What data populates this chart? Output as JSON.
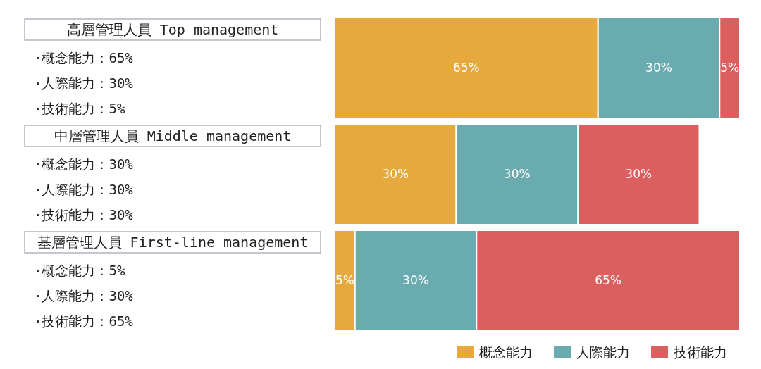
{
  "chart_data": {
    "type": "bar",
    "orientation": "horizontal",
    "stacked": true,
    "legend": "bottom right",
    "categories": [
      "高層管理人員 Top management",
      "中層管理人員 Middle management",
      "基層管理人員 First-line management"
    ],
    "series": [
      {
        "name": "概念能力",
        "color": "#e5a93d",
        "values": [
          65,
          30,
          5
        ],
        "value_labels": [
          "65%",
          "30%",
          "5%"
        ]
      },
      {
        "name": "人際能力",
        "color": "#6aabb0",
        "values": [
          30,
          30,
          30
        ],
        "value_labels": [
          "30%",
          "30%",
          "30%"
        ]
      },
      {
        "name": "技術能力",
        "color": "#dc5f5f",
        "values": [
          5,
          30,
          65
        ],
        "value_labels": [
          "5%",
          "30%",
          "65%"
        ]
      }
    ],
    "annotations": [
      "·概念能力：65%",
      "·人際能力：30%",
      "·技術能力：5%",
      "·概念能力：30%",
      "·人際能力：30%",
      "·技術能力：30%",
      "·概念能力：5%",
      "·人際能力：30%",
      "·技術能力：65%"
    ]
  }
}
